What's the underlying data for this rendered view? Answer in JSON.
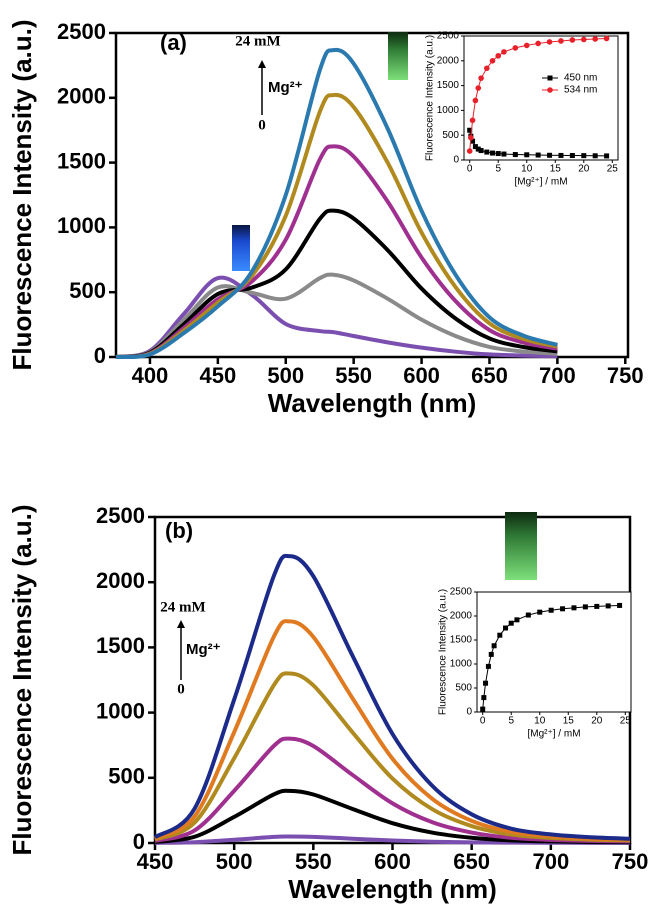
{
  "chart_data": [
    {
      "type": "line",
      "panel_label": "(a)",
      "annotations": [
        "24 mM",
        "Mg²⁺",
        "0"
      ],
      "xlabel": "Wavelength (nm)",
      "ylabel": "Fluorescence Intensity (a.u.)",
      "x": [
        375,
        400,
        425,
        450,
        475,
        500,
        525,
        535,
        550,
        575,
        600,
        625,
        650,
        675,
        700
      ],
      "xlim": [
        375,
        752
      ],
      "xticks": [
        400,
        450,
        500,
        550,
        600,
        650,
        700,
        750
      ],
      "ylim": [
        0,
        2500
      ],
      "yticks": [
        0,
        500,
        1000,
        1500,
        2000,
        2500
      ],
      "series": [
        {
          "color": "#7a4fb0",
          "values": [
            0,
            48,
            333,
            609,
            480,
            255,
            200,
            192,
            162,
            113,
            72,
            41,
            20,
            11,
            6
          ]
        },
        {
          "color": "#8a8a8a",
          "values": [
            0,
            40,
            287,
            536,
            495,
            450,
            608,
            635,
            591,
            450,
            288,
            162,
            78,
            42,
            24
          ]
        },
        {
          "color": "#000000",
          "values": [
            0,
            34,
            253,
            486,
            535,
            676,
            1065,
            1129,
            1069,
            825,
            528,
            297,
            143,
            77,
            44
          ]
        },
        {
          "color": "#a03090",
          "values": [
            0,
            28,
            225,
            446,
            583,
            905,
            1523,
            1625,
            1547,
            1200,
            768,
            432,
            208,
            112,
            64
          ]
        },
        {
          "color": "#b08a1e",
          "values": [
            0,
            24,
            205,
            420,
            625,
            1090,
            1890,
            2021,
            1929,
            1500,
            960,
            540,
            260,
            140,
            80
          ]
        },
        {
          "color": "#2a7ab0",
          "values": [
            0,
            20,
            185,
            391,
            658,
            1250,
            2211,
            2368,
            2264,
            1763,
            1128,
            635,
            306,
            165,
            94
          ]
        }
      ]
    },
    {
      "type": "line",
      "xlabel": "[Mg²⁺] / mM",
      "ylabel": "Fluorescence Intensity (a.u.)",
      "x": [
        0,
        0.2,
        0.5,
        1,
        1.5,
        2,
        3,
        4,
        5,
        6,
        8,
        10,
        12,
        14,
        16,
        18,
        20,
        22,
        24
      ],
      "xlim": [
        -1,
        26
      ],
      "xticks": [
        0,
        5,
        10,
        15,
        20,
        25
      ],
      "ylim": [
        0,
        2500
      ],
      "yticks": [
        0,
        500,
        1000,
        1500,
        2000,
        2500
      ],
      "series": [
        {
          "name": "450 nm",
          "color": "#000000",
          "marker": "square",
          "values": [
            600,
            480,
            380,
            270,
            220,
            190,
            160,
            140,
            130,
            120,
            110,
            105,
            100,
            95,
            92,
            90,
            88,
            85,
            82
          ]
        },
        {
          "name": "534 nm",
          "color": "#e8202a",
          "marker": "circle",
          "values": [
            180,
            450,
            800,
            1200,
            1450,
            1650,
            1850,
            2000,
            2100,
            2180,
            2260,
            2310,
            2350,
            2380,
            2400,
            2420,
            2430,
            2440,
            2450
          ]
        }
      ]
    },
    {
      "type": "line",
      "panel_label": "(b)",
      "annotations": [
        "24 mM",
        "Mg²⁺",
        "0"
      ],
      "xlabel": "Wavelength (nm)",
      "ylabel": "Fluorescence Intensity (a.u.)",
      "x": [
        450,
        475,
        500,
        525,
        535,
        550,
        575,
        600,
        625,
        650,
        675,
        700,
        725,
        750
      ],
      "xlim": [
        450,
        750
      ],
      "xticks": [
        450,
        500,
        550,
        600,
        650,
        700,
        750
      ],
      "ylim": [
        0,
        2500
      ],
      "yticks": [
        0,
        500,
        1000,
        1500,
        2000,
        2500
      ],
      "series": [
        {
          "color": "#7a4fb0",
          "values": [
            1,
            6,
            25,
            47,
            50,
            47,
            33,
            19,
            10,
            5,
            3,
            2,
            1,
            1
          ]
        },
        {
          "color": "#000000",
          "values": [
            8,
            48,
            200,
            372,
            400,
            372,
            260,
            152,
            80,
            40,
            20,
            12,
            8,
            6
          ]
        },
        {
          "color": "#a03090",
          "values": [
            16,
            96,
            400,
            744,
            800,
            744,
            520,
            304,
            160,
            80,
            40,
            24,
            16,
            12
          ]
        },
        {
          "color": "#b08a1e",
          "values": [
            26,
            156,
            650,
            1209,
            1300,
            1209,
            845,
            494,
            260,
            130,
            65,
            39,
            26,
            20
          ]
        },
        {
          "color": "#e07a20",
          "values": [
            34,
            204,
            850,
            1581,
            1700,
            1581,
            1105,
            646,
            340,
            170,
            85,
            51,
            34,
            26
          ]
        },
        {
          "color": "#1c2a8a",
          "values": [
            44,
            264,
            1100,
            2046,
            2200,
            2046,
            1430,
            836,
            440,
            220,
            110,
            66,
            44,
            33
          ]
        }
      ]
    },
    {
      "type": "line",
      "xlabel": "[Mg²⁺] / mM",
      "ylabel": "Fluorescence Intensity (a.u.)",
      "x": [
        0,
        0.2,
        0.5,
        1,
        1.5,
        2,
        3,
        4,
        5,
        6,
        8,
        10,
        12,
        14,
        16,
        18,
        20,
        22,
        24
      ],
      "xlim": [
        -1,
        26
      ],
      "xticks": [
        0,
        5,
        10,
        15,
        20,
        25
      ],
      "ylim": [
        0,
        2500
      ],
      "yticks": [
        0,
        500,
        1000,
        1500,
        2000,
        2500
      ],
      "series": [
        {
          "color": "#000000",
          "marker": "square",
          "values": [
            60,
            300,
            600,
            950,
            1200,
            1380,
            1600,
            1750,
            1850,
            1920,
            2020,
            2080,
            2120,
            2150,
            2170,
            2190,
            2200,
            2210,
            2220
          ]
        }
      ]
    }
  ]
}
